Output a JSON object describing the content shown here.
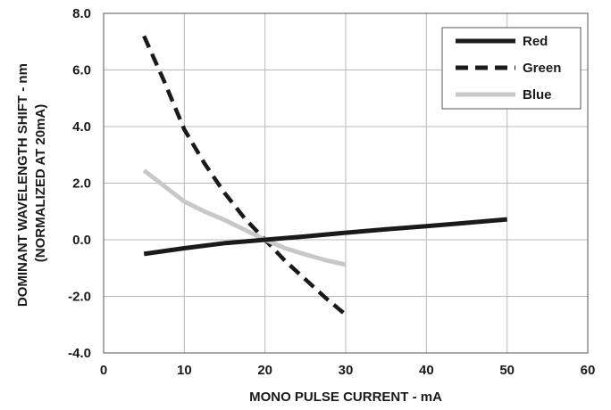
{
  "chart_data": {
    "type": "line",
    "title": "",
    "xlabel": "MONO PULSE CURRENT - mA",
    "ylabel_lines": [
      "DOMINANT WAVELENGTH SHIFT - nm",
      "(NORMALIZED AT 20mA)"
    ],
    "xlim": [
      0,
      60
    ],
    "ylim": [
      -4.0,
      8.0
    ],
    "x_ticks": [
      0,
      10,
      20,
      30,
      40,
      50,
      60
    ],
    "x_tick_labels": [
      "0",
      "10",
      "20",
      "30",
      "40",
      "50",
      "60"
    ],
    "y_ticks": [
      -4.0,
      -2.0,
      0.0,
      2.0,
      4.0,
      6.0,
      8.0
    ],
    "y_tick_labels": [
      "-4.0",
      "-2.0",
      "0.0",
      "2.0",
      "4.0",
      "6.0",
      "8.0"
    ],
    "grid": true,
    "legend_position": "top-right",
    "series": [
      {
        "name": "Red",
        "color": "#1a1a1a",
        "dash": "solid",
        "points": [
          [
            5,
            -0.5
          ],
          [
            10,
            -0.3
          ],
          [
            15,
            -0.12
          ],
          [
            20,
            0.0
          ],
          [
            25,
            0.12
          ],
          [
            30,
            0.25
          ],
          [
            35,
            0.37
          ],
          [
            40,
            0.48
          ],
          [
            45,
            0.6
          ],
          [
            50,
            0.72
          ]
        ]
      },
      {
        "name": "Green",
        "color": "#1a1a1a",
        "dash": "dashed",
        "points": [
          [
            5,
            7.2
          ],
          [
            7.5,
            5.6
          ],
          [
            10,
            3.9
          ],
          [
            12.5,
            2.7
          ],
          [
            15,
            1.65
          ],
          [
            17.5,
            0.75
          ],
          [
            20,
            0.0
          ],
          [
            22.5,
            -0.75
          ],
          [
            25,
            -1.4
          ],
          [
            27.5,
            -2.05
          ],
          [
            30,
            -2.65
          ]
        ]
      },
      {
        "name": "Blue",
        "color": "#c8c8c8",
        "dash": "solid",
        "points": [
          [
            5,
            2.45
          ],
          [
            7.5,
            1.9
          ],
          [
            10,
            1.35
          ],
          [
            12.5,
            1.0
          ],
          [
            15,
            0.7
          ],
          [
            17.5,
            0.35
          ],
          [
            20,
            0.0
          ],
          [
            22.5,
            -0.3
          ],
          [
            25,
            -0.52
          ],
          [
            27.5,
            -0.72
          ],
          [
            30,
            -0.88
          ]
        ]
      }
    ]
  }
}
